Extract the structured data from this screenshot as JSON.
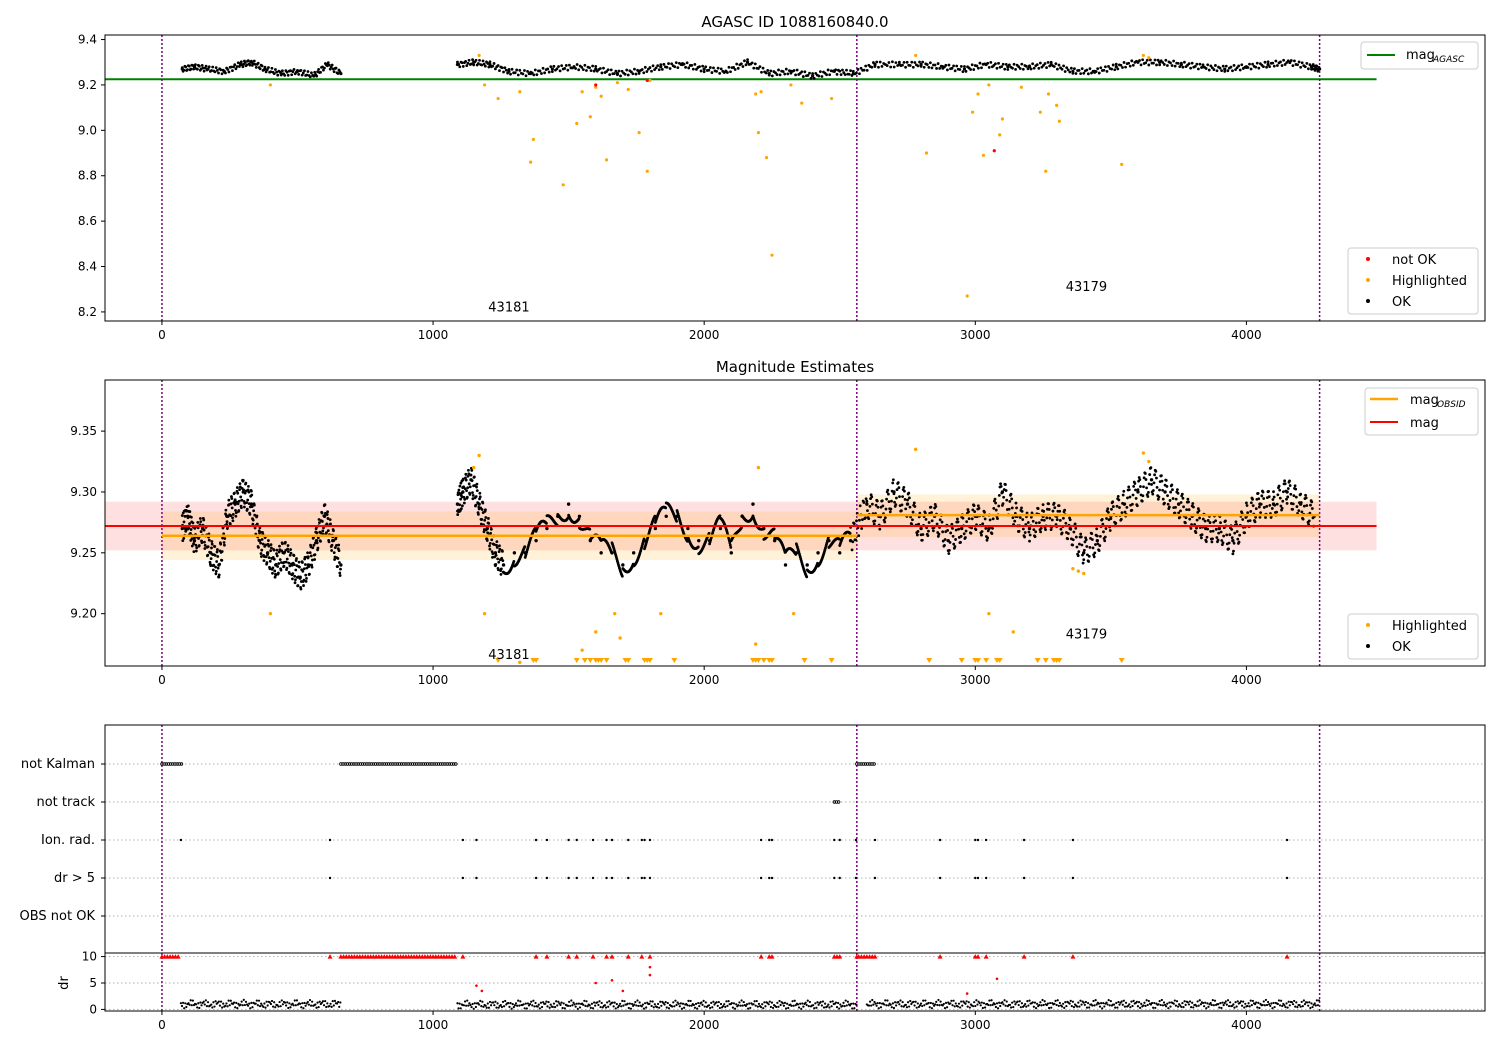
{
  "colors": {
    "ok": "#000000",
    "not_ok": "#ff0000",
    "highlighted": "#ffa500",
    "mag_agasc": "#008000",
    "mag_obsid": "#ffa500",
    "mag": "#ff0000",
    "obs_boundary": "#800080",
    "grid": "#b0b0b0"
  },
  "chart_data": [
    {
      "type": "scatter",
      "title": "AGASC ID 1088160840.0",
      "xlabel": "",
      "ylabel": "",
      "xlim": [
        -210,
        4880
      ],
      "ylim": [
        8.16,
        9.42
      ],
      "xticks": [
        0,
        1000,
        2000,
        3000,
        4000
      ],
      "xtick_labels": [
        "0",
        "1000",
        "2000",
        "3000",
        "4000"
      ],
      "yticks": [
        8.2,
        8.4,
        8.6,
        8.8,
        9.0,
        9.2,
        9.4
      ],
      "ytick_labels": [
        "8.2",
        "8.4",
        "8.6",
        "8.8",
        "9.0",
        "9.2",
        "9.4"
      ],
      "grid": false,
      "obs_boundaries": [
        0,
        2563,
        4270
      ],
      "obsid_labels": [
        {
          "text": "43181",
          "x": 1280,
          "y": 8.22
        },
        {
          "text": "43179",
          "x": 3410,
          "y": 8.31
        }
      ],
      "lines": [
        {
          "name": "mag_AGASC",
          "label_main": "mag",
          "label_sub": "AGASC",
          "y": 9.225,
          "x": [
            -210,
            4480
          ],
          "color": "#008000"
        }
      ],
      "series": [
        {
          "name": "OK",
          "color": "#000000",
          "x": [
            75,
            120,
            170,
            230,
            290,
            330,
            380,
            440,
            500,
            560,
            610,
            660,
            1090,
            1150,
            1210,
            1280,
            1360,
            1440,
            1520,
            1600,
            1680,
            1760,
            1840,
            1920,
            2000,
            2080,
            2160,
            2240,
            2320,
            2400,
            2480,
            2550,
            2630,
            2720,
            2800,
            2880,
            2960,
            3040,
            3120,
            3200,
            3280,
            3360,
            3440,
            3520,
            3600,
            3680,
            3760,
            3840,
            3920,
            4000,
            4080,
            4160,
            4240,
            4270
          ],
          "y": [
            9.27,
            9.28,
            9.27,
            9.26,
            9.29,
            9.3,
            9.27,
            9.25,
            9.26,
            9.24,
            9.29,
            9.25,
            9.29,
            9.3,
            9.29,
            9.26,
            9.25,
            9.27,
            9.28,
            9.27,
            9.25,
            9.26,
            9.28,
            9.29,
            9.27,
            9.26,
            9.3,
            9.25,
            9.26,
            9.24,
            9.26,
            9.25,
            9.29,
            9.29,
            9.29,
            9.28,
            9.27,
            9.29,
            9.28,
            9.28,
            9.29,
            9.26,
            9.26,
            9.28,
            9.3,
            9.3,
            9.29,
            9.28,
            9.27,
            9.28,
            9.29,
            9.3,
            9.28,
            9.27
          ]
        },
        {
          "name": "Highlighted",
          "color": "#ffa500",
          "x": [
            400,
            1170,
            1190,
            1240,
            1320,
            1360,
            1370,
            1480,
            1530,
            1550,
            1580,
            1600,
            1620,
            1640,
            1680,
            1720,
            1760,
            1790,
            1800,
            2190,
            2200,
            2210,
            2230,
            2250,
            2320,
            2360,
            2470,
            2780,
            2820,
            2990,
            3010,
            3030,
            3050,
            3090,
            3100,
            3170,
            3240,
            3260,
            3270,
            3300,
            3310,
            3540,
            3620,
            3640,
            2970
          ],
          "y": [
            9.2,
            9.33,
            9.2,
            9.14,
            9.17,
            8.86,
            8.96,
            8.76,
            9.03,
            9.17,
            9.06,
            9.19,
            9.15,
            8.87,
            9.21,
            9.18,
            8.99,
            8.82,
            9.22,
            9.16,
            8.99,
            9.17,
            8.88,
            8.45,
            9.2,
            9.12,
            9.14,
            9.33,
            8.9,
            9.08,
            9.16,
            8.89,
            9.2,
            8.98,
            9.05,
            9.19,
            9.08,
            8.82,
            9.16,
            9.11,
            9.04,
            8.85,
            9.33,
            9.32,
            8.27
          ]
        },
        {
          "name": "not OK",
          "color": "#ff0000",
          "x": [
            1600,
            1790,
            3070
          ],
          "y": [
            9.2,
            9.22,
            8.91
          ]
        }
      ],
      "legend_upper": "upper right",
      "legend_lower": "lower right",
      "legend_lower_entries": [
        "not OK",
        "Highlighted",
        "OK"
      ]
    },
    {
      "type": "scatter",
      "title": "Magnitude Estimates",
      "xlabel": "",
      "ylabel": "",
      "xlim": [
        -210,
        4880
      ],
      "ylim": [
        9.157,
        9.392
      ],
      "xticks": [
        0,
        1000,
        2000,
        3000,
        4000
      ],
      "xtick_labels": [
        "0",
        "1000",
        "2000",
        "3000",
        "4000"
      ],
      "yticks": [
        9.2,
        9.25,
        9.3,
        9.35
      ],
      "ytick_labels": [
        "9.20",
        "9.25",
        "9.30",
        "9.35"
      ],
      "grid": false,
      "obs_boundaries": [
        0,
        2563,
        4270
      ],
      "obsid_labels": [
        {
          "text": "43181",
          "x": 1280,
          "y": 9.166
        },
        {
          "text": "43179",
          "x": 3410,
          "y": 9.183
        }
      ],
      "mag_band": {
        "y": 9.272,
        "y_low": 9.252,
        "y_high": 9.292,
        "x": [
          -210,
          4480
        ]
      },
      "obsid_bands": [
        {
          "x": [
            0,
            2563
          ],
          "y": 9.264,
          "y_low": 9.244,
          "y_high": 9.284
        },
        {
          "x": [
            2563,
            4270
          ],
          "y": 9.281,
          "y_low": 9.263,
          "y_high": 9.298
        }
      ],
      "series": [
        {
          "name": "OK",
          "color": "#000000",
          "x": [
            75,
            95,
            120,
            150,
            180,
            210,
            240,
            270,
            300,
            330,
            360,
            390,
            420,
            450,
            480,
            510,
            540,
            570,
            600,
            630,
            660,
            1090,
            1110,
            1140,
            1170,
            1200,
            1230,
            1260,
            1300,
            1340,
            1380,
            1420,
            1460,
            1500,
            1540,
            1580,
            1620,
            1660,
            1700,
            1740,
            1780,
            1820,
            1860,
            1900,
            1940,
            1980,
            2020,
            2060,
            2100,
            2140,
            2180,
            2220,
            2260,
            2300,
            2340,
            2380,
            2420,
            2460,
            2500,
            2540,
            2600,
            2650,
            2700,
            2750,
            2800,
            2850,
            2900,
            2950,
            3000,
            3050,
            3100,
            3150,
            3200,
            3250,
            3300,
            3350,
            3400,
            3450,
            3500,
            3550,
            3600,
            3650,
            3700,
            3750,
            3800,
            3850,
            3900,
            3950,
            4000,
            4050,
            4100,
            4150,
            4200,
            4250
          ],
          "y": [
            9.27,
            9.28,
            9.26,
            9.27,
            9.25,
            9.24,
            9.28,
            9.29,
            9.3,
            9.29,
            9.26,
            9.25,
            9.24,
            9.25,
            9.24,
            9.23,
            9.24,
            9.26,
            9.28,
            9.26,
            9.24,
            9.29,
            9.3,
            9.31,
            9.29,
            9.27,
            9.25,
            9.24,
            9.25,
            9.25,
            9.26,
            9.27,
            9.28,
            9.29,
            9.28,
            9.26,
            9.25,
            9.25,
            9.24,
            9.25,
            9.26,
            9.27,
            9.28,
            9.28,
            9.27,
            9.26,
            9.26,
            9.27,
            9.25,
            9.28,
            9.29,
            9.27,
            9.26,
            9.24,
            9.25,
            9.24,
            9.25,
            9.26,
            9.25,
            9.26,
            9.29,
            9.28,
            9.3,
            9.29,
            9.27,
            9.28,
            9.26,
            9.27,
            9.28,
            9.27,
            9.3,
            9.28,
            9.27,
            9.28,
            9.28,
            9.27,
            9.25,
            9.26,
            9.28,
            9.29,
            9.3,
            9.31,
            9.3,
            9.29,
            9.28,
            9.27,
            9.27,
            9.26,
            9.28,
            9.29,
            9.29,
            9.3,
            9.29,
            9.28
          ]
        },
        {
          "name": "Highlighted",
          "color": "#ffa500",
          "x": [
            1150,
            1170,
            1190,
            400,
            1320,
            1550,
            1600,
            1670,
            1690,
            1840,
            2190,
            2200,
            2330,
            2780,
            3050,
            3140,
            3360,
            3380,
            3400,
            3620,
            3640
          ],
          "y": [
            9.32,
            9.33,
            9.2,
            9.2,
            9.16,
            9.17,
            9.185,
            9.2,
            9.18,
            9.2,
            9.175,
            9.32,
            9.2,
            9.335,
            9.2,
            9.185,
            9.237,
            9.235,
            9.233,
            9.332,
            9.325
          ]
        }
      ],
      "off_scale_low_x": [
        1240,
        1370,
        1380,
        1530,
        1560,
        1580,
        1600,
        1610,
        1620,
        1640,
        1710,
        1720,
        1780,
        1790,
        1800,
        1890,
        2180,
        2190,
        2200,
        2220,
        2240,
        2250,
        2370,
        2470,
        2830,
        2950,
        3000,
        3010,
        3040,
        3080,
        3090,
        3230,
        3260,
        3290,
        3300,
        3310,
        3540
      ],
      "legend_upper": "upper right",
      "legend_lower": "lower right",
      "legend_lower_entries": [
        "Highlighted",
        "OK"
      ]
    },
    {
      "type": "scatter",
      "title": "",
      "xlabel": "",
      "ylabel": "dr",
      "xlim": [
        -210,
        4880
      ],
      "xticks": [
        0,
        1000,
        2000,
        3000,
        4000
      ],
      "xtick_labels": [
        "0",
        "1000",
        "2000",
        "3000",
        "4000"
      ],
      "flag_rows": [
        "not Kalman",
        "not track",
        "Ion. rad.",
        "dr > 5",
        "OBS not OK"
      ],
      "flag_segments": [
        {
          "row": "not Kalman",
          "x": [
            0,
            75
          ]
        },
        {
          "row": "not Kalman",
          "x": [
            660,
            1090
          ]
        },
        {
          "row": "not Kalman",
          "x": [
            2563,
            2630
          ]
        },
        {
          "row": "not track",
          "x": [
            2480,
            2500
          ]
        }
      ],
      "flag_points": [
        {
          "row": "Ion. rad.",
          "x": [
            70,
            620,
            1110,
            1160,
            1380,
            1420,
            1500,
            1530,
            1590,
            1640,
            1660,
            1720,
            1770,
            1780,
            1800,
            2210,
            2240,
            2250,
            2480,
            2500,
            2560,
            2630,
            2870,
            3000,
            3010,
            3040,
            3180,
            3360,
            4150
          ]
        },
        {
          "row": "dr > 5",
          "x": [
            620,
            1110,
            1160,
            1380,
            1420,
            1500,
            1530,
            1590,
            1640,
            1660,
            1720,
            1770,
            1780,
            1800,
            2210,
            2240,
            2250,
            2480,
            2500,
            2560,
            2630,
            2870,
            3000,
            3010,
            3040,
            3180,
            3360,
            4150
          ]
        }
      ],
      "dr_ylim": [
        -0.3,
        10.3
      ],
      "dr_yticks": [
        0,
        5,
        10
      ],
      "dr_ytick_labels": [
        "0",
        "5",
        "10"
      ],
      "dr_segments_ok": [
        {
          "x": [
            70,
            660
          ],
          "y": 1.0
        },
        {
          "x": [
            1090,
            2563
          ],
          "y": 0.9
        },
        {
          "x": [
            2600,
            4270
          ],
          "y": 1.0
        }
      ],
      "dr_capped_red_x": [
        0,
        10,
        20,
        30,
        40,
        50,
        60,
        620,
        660,
        670,
        680,
        690,
        700,
        710,
        720,
        730,
        740,
        750,
        760,
        770,
        780,
        790,
        800,
        810,
        820,
        830,
        840,
        850,
        860,
        870,
        880,
        890,
        900,
        910,
        920,
        930,
        940,
        950,
        960,
        970,
        980,
        990,
        1000,
        1010,
        1020,
        1030,
        1040,
        1050,
        1060,
        1070,
        1080,
        1110,
        1380,
        1420,
        1500,
        1530,
        1590,
        1640,
        1660,
        1720,
        1770,
        1800,
        2210,
        2240,
        2250,
        2480,
        2490,
        2500,
        2563,
        2570,
        2580,
        2590,
        2600,
        2610,
        2620,
        2630,
        2870,
        3000,
        3010,
        3040,
        3180,
        3360,
        4150
      ],
      "dr_red_points": [
        {
          "x": 1160,
          "y": 4.5
        },
        {
          "x": 1180,
          "y": 3.5
        },
        {
          "x": 1600,
          "y": 5.0
        },
        {
          "x": 1660,
          "y": 5.5
        },
        {
          "x": 1700,
          "y": 3.5
        },
        {
          "x": 1800,
          "y": 8.0
        },
        {
          "x": 1800,
          "y": 6.5
        },
        {
          "x": 3080,
          "y": 5.8
        },
        {
          "x": 2970,
          "y": 3.0
        }
      ]
    }
  ]
}
